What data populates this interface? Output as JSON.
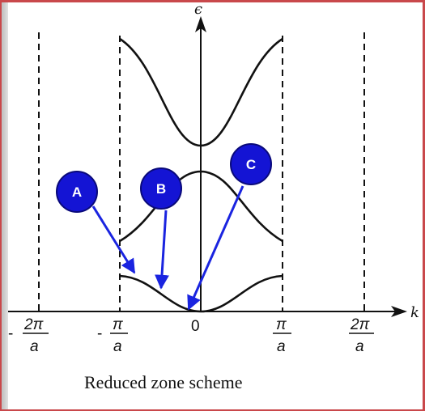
{
  "axes": {
    "y_label": "ϵ",
    "x_label": "k"
  },
  "ticks": [
    {
      "sign": "-",
      "numerator": "2π",
      "denominator": "a"
    },
    {
      "sign": "-",
      "numerator": "π",
      "denominator": "a"
    },
    {
      "sign": "",
      "numerator": "0",
      "denominator": ""
    },
    {
      "sign": "",
      "numerator": "π",
      "denominator": "a"
    },
    {
      "sign": "",
      "numerator": "2π",
      "denominator": "a"
    }
  ],
  "caption": "Reduced zone scheme",
  "markers": [
    {
      "label": "A"
    },
    {
      "label": "B"
    },
    {
      "label": "C"
    }
  ],
  "colors": {
    "marker_fill": "#1414d4",
    "marker_stroke": "#0a0a7a",
    "arrow": "#1a24e0",
    "curve": "#111111",
    "frame": "#c9484b"
  }
}
